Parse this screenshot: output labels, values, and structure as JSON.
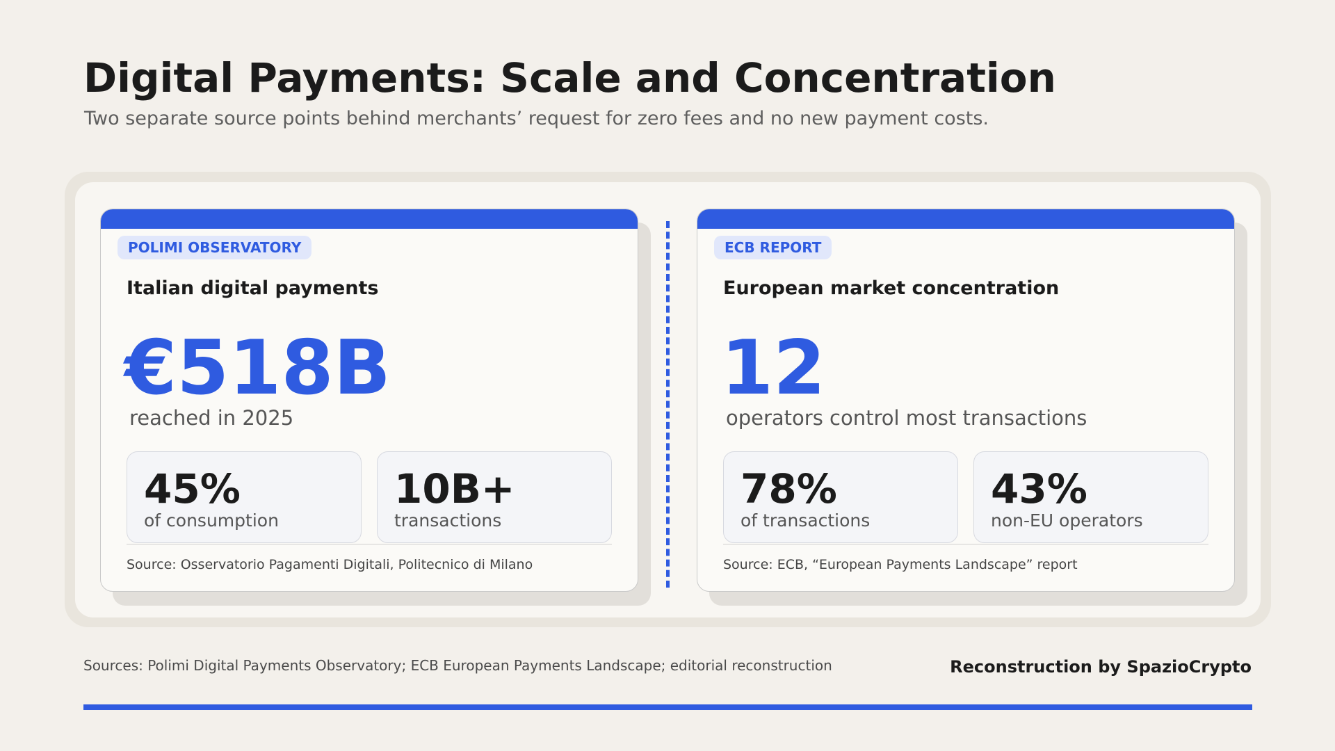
{
  "header": {
    "title": "Digital Payments: Scale and Concentration",
    "subtitle": "Two separate source points behind merchants’ request for zero fees and no new payment costs."
  },
  "cards": [
    {
      "tag": "POLIMI OBSERVATORY",
      "heading": "Italian digital payments",
      "figure": "€518B",
      "caption": "reached in 2025",
      "stats": [
        {
          "value": "45%",
          "label": "of consumption"
        },
        {
          "value": "10B+",
          "label": "transactions"
        }
      ],
      "source": "Source: Osservatorio Pagamenti Digitali, Politecnico di Milano"
    },
    {
      "tag": "ECB REPORT",
      "heading": "European market concentration",
      "figure": "12",
      "caption": "operators control most transactions",
      "stats": [
        {
          "value": "78%",
          "label": "of transactions"
        },
        {
          "value": "43%",
          "label": "non-EU operators"
        }
      ],
      "source": "Source: ECB, “European Payments Landscape” report"
    }
  ],
  "footer": {
    "sources": "Sources: Polimi Digital Payments Observatory; ECB European Payments Landscape; editorial reconstruction",
    "credit": "Reconstruction by SpazioCrypto"
  }
}
